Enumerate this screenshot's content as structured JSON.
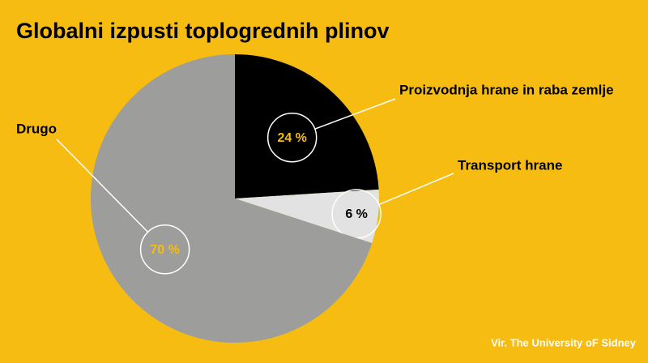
{
  "chart_data": {
    "type": "pie",
    "title": "Globalni izpusti toplogrednih plinov",
    "categories": [
      "Proizvodnja hrane in raba zemlje",
      "Transport hrane",
      "Drugo"
    ],
    "values": [
      24,
      6,
      70
    ],
    "value_labels": [
      "24 %",
      "6 %",
      "70 %"
    ],
    "colors": [
      "#000000",
      "#e2e2e2",
      "#9d9d9b"
    ],
    "value_label_colors": [
      "#f7bc12",
      "#000000",
      "#f7bc12"
    ],
    "source": "Vir. The University oF Sidney"
  }
}
